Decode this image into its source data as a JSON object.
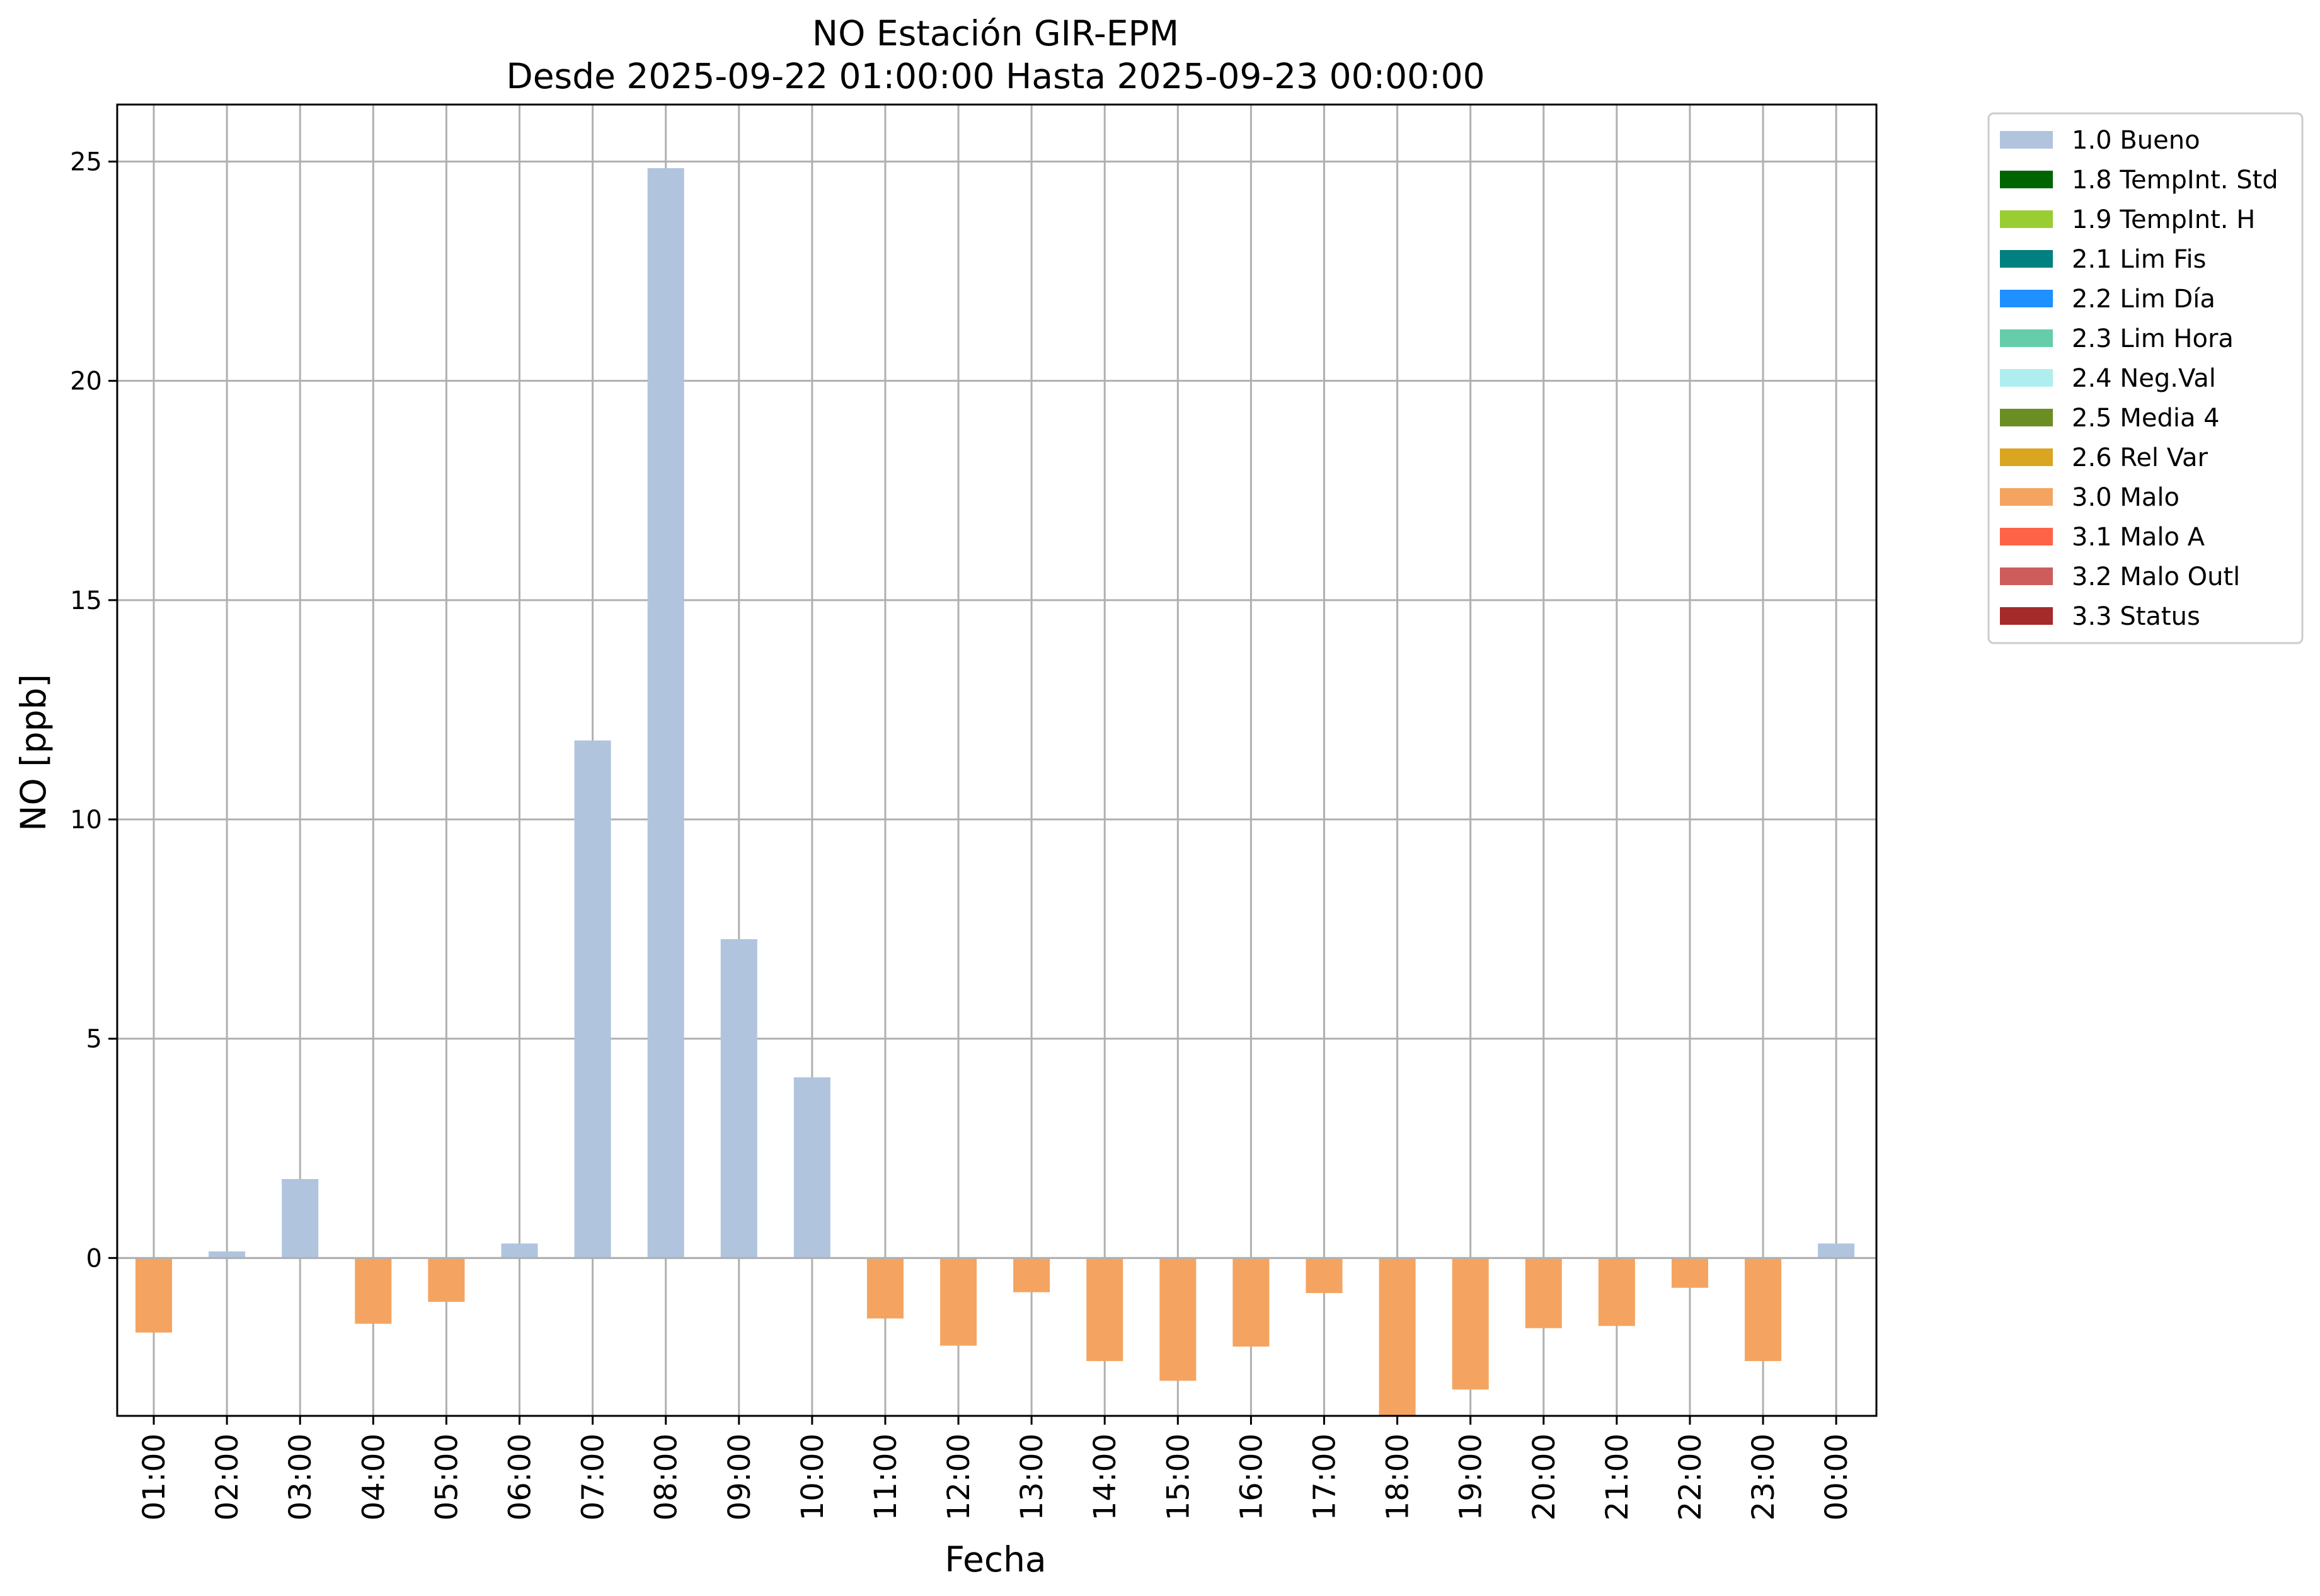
{
  "chart_data": {
    "type": "bar",
    "title": "NO Estación GIR-EPM",
    "subtitle": "Desde 2025-09-22 01:00:00 Hasta 2025-09-23 00:00:00",
    "xlabel": "Fecha",
    "ylabel": "NO [ppb]",
    "ylim": [
      -3.6,
      26.3
    ],
    "yticks": [
      0,
      5,
      10,
      15,
      20,
      25
    ],
    "grid": true,
    "legend_position": "outside-top-right",
    "categories": [
      "01:00",
      "02:00",
      "03:00",
      "04:00",
      "05:00",
      "06:00",
      "07:00",
      "08:00",
      "09:00",
      "10:00",
      "11:00",
      "12:00",
      "13:00",
      "14:00",
      "15:00",
      "16:00",
      "17:00",
      "18:00",
      "19:00",
      "20:00",
      "21:00",
      "22:00",
      "23:00",
      "00:00"
    ],
    "values": [
      -1.7,
      0.15,
      1.8,
      -1.5,
      -1.0,
      0.33,
      11.8,
      24.85,
      7.27,
      4.12,
      -1.38,
      -2.0,
      -0.78,
      -2.35,
      -2.8,
      -2.02,
      -0.8,
      -3.6,
      -3.0,
      -1.6,
      -1.55,
      -0.68,
      -2.35,
      0.33
    ],
    "flags": [
      "3.0 Malo",
      "1.0 Bueno",
      "1.0 Bueno",
      "3.0 Malo",
      "3.0 Malo",
      "1.0 Bueno",
      "1.0 Bueno",
      "1.0 Bueno",
      "1.0 Bueno",
      "1.0 Bueno",
      "3.0 Malo",
      "3.0 Malo",
      "3.0 Malo",
      "3.0 Malo",
      "3.0 Malo",
      "3.0 Malo",
      "3.0 Malo",
      "3.0 Malo",
      "3.0 Malo",
      "3.0 Malo",
      "3.0 Malo",
      "3.0 Malo",
      "3.0 Malo",
      "1.0 Bueno"
    ],
    "legend": [
      {
        "label": "1.0 Bueno",
        "color": "#b0c4de"
      },
      {
        "label": "1.8 TempInt. Std",
        "color": "#006400"
      },
      {
        "label": "1.9 TempInt. H",
        "color": "#9acd32"
      },
      {
        "label": "2.1 Lim Fis",
        "color": "#008080"
      },
      {
        "label": "2.2 Lim Día",
        "color": "#1e90ff"
      },
      {
        "label": "2.3 Lim Hora",
        "color": "#66cdaa"
      },
      {
        "label": "2.4 Neg.Val",
        "color": "#afeeee"
      },
      {
        "label": "2.5 Media 4",
        "color": "#6b8e23"
      },
      {
        "label": "2.6 Rel Var",
        "color": "#daa520"
      },
      {
        "label": "3.0 Malo",
        "color": "#f4a460"
      },
      {
        "label": "3.1 Malo A",
        "color": "#ff6347"
      },
      {
        "label": "3.2 Malo Outl",
        "color": "#cd5c5c"
      },
      {
        "label": "3.3 Status",
        "color": "#a52a2a"
      }
    ]
  }
}
